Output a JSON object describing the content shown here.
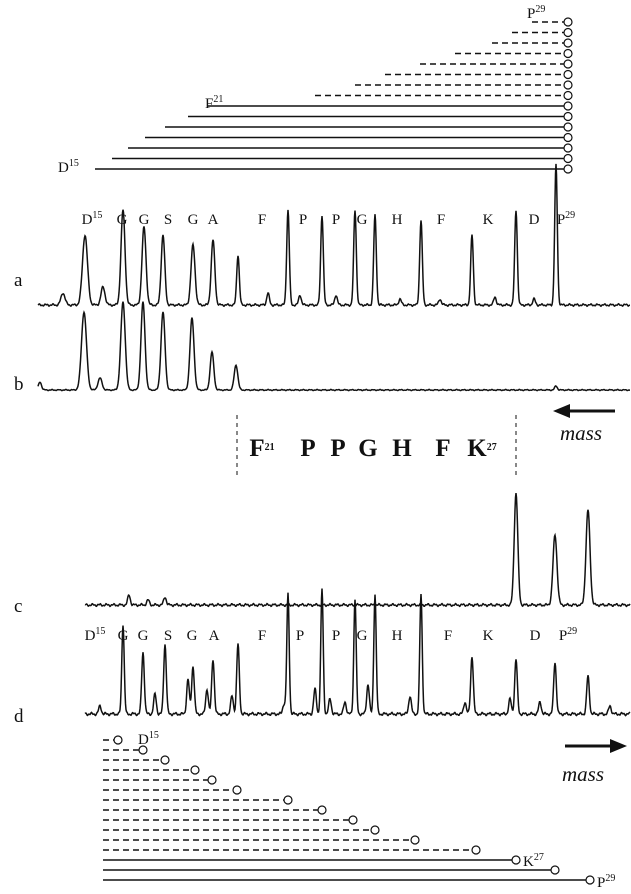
{
  "top_ladder": {
    "labels": [
      {
        "text": "D",
        "sup": "15"
      },
      {
        "text": "F",
        "sup": "21"
      },
      {
        "text": "P",
        "sup": "29"
      }
    ]
  },
  "panel_a": {
    "label": "a",
    "peak_labels": [
      {
        "text": "D",
        "sup": "15"
      },
      "G",
      "G",
      "S",
      "G",
      "A",
      "F",
      "P",
      "P",
      "G",
      "H",
      "F",
      "K",
      "D",
      {
        "text": "P",
        "sup": "29"
      }
    ]
  },
  "panel_b": {
    "label": "b"
  },
  "mass_labels": [
    "mass",
    "mass"
  ],
  "sequence": {
    "tokens": [
      {
        "text": "F",
        "sup": "21"
      },
      "P",
      "P",
      "G",
      "H",
      "F",
      {
        "text": "K",
        "sup": "27"
      }
    ]
  },
  "panel_c": {
    "label": "c"
  },
  "panel_d": {
    "label": "d",
    "peak_labels": [
      {
        "text": "D",
        "sup": "15"
      },
      "G",
      "G",
      "S",
      "G",
      "A",
      "F",
      "P",
      "P",
      "G",
      "H",
      "F",
      "K",
      "D",
      {
        "text": "P",
        "sup": "29"
      }
    ]
  },
  "bottom_ladder": {
    "labels": [
      {
        "text": "D",
        "sup": "15"
      },
      {
        "text": "K",
        "sup": "27"
      },
      {
        "text": "P",
        "sup": "29"
      }
    ]
  }
}
